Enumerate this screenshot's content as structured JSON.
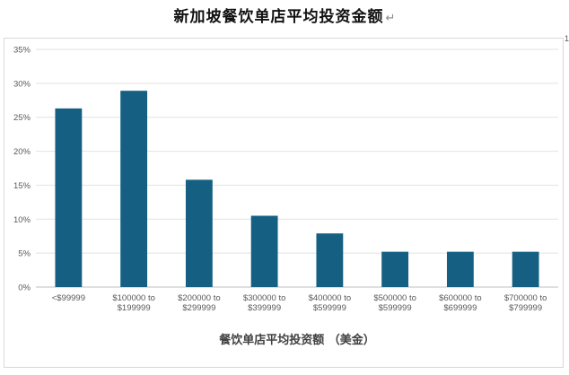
{
  "chart_data": {
    "type": "bar",
    "title": "新加坡餐饮单店平均投资金额",
    "title_mark": "↵",
    "edge_mark": "1",
    "categories": [
      [
        "<$99999"
      ],
      [
        "$100000 to",
        "$199999"
      ],
      [
        "$200000 to",
        "$299999"
      ],
      [
        "$300000 to",
        "$399999"
      ],
      [
        "$400000 to",
        "$599999"
      ],
      [
        "$500000 to",
        "$599999"
      ],
      [
        "$600000 to",
        "$699999"
      ],
      [
        "$700000 to",
        "$799999"
      ]
    ],
    "values": [
      26.3,
      28.9,
      15.8,
      10.5,
      7.9,
      5.2,
      5.2,
      5.2
    ],
    "xlabel": "餐饮单店平均投资额 （美金）",
    "ylabel": "",
    "ylim": [
      0,
      35
    ],
    "yticks": [
      "0%",
      "5%",
      "10%",
      "15%",
      "20%",
      "25%",
      "30%",
      "35%"
    ],
    "grid": true,
    "colors": {
      "bar": "#156082",
      "grid": "#e2e2e2",
      "axis": "#bfbfbf"
    }
  }
}
